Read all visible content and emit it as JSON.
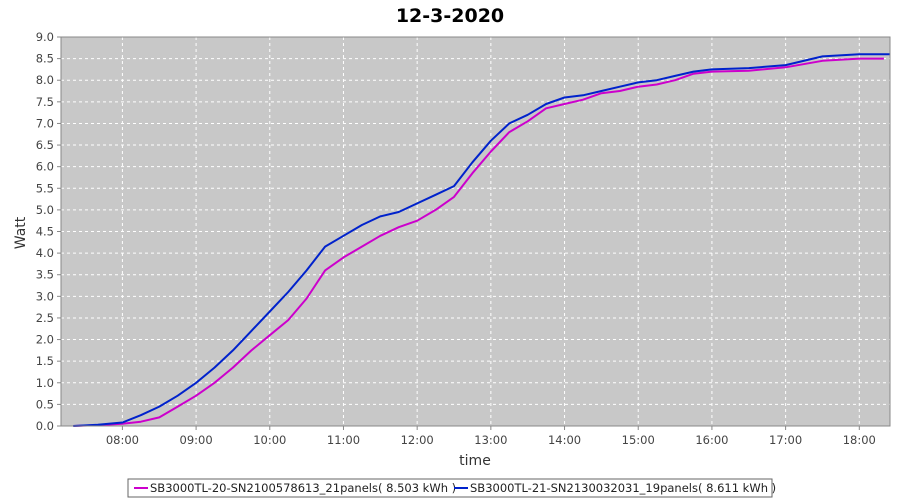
{
  "chart_data": {
    "type": "line",
    "title": "12-3-2020",
    "xlabel": "time",
    "ylabel": "Watt",
    "xlim": [
      "07:10",
      "18:25"
    ],
    "ylim": [
      0,
      9
    ],
    "x_ticks": [
      "08:00",
      "09:00",
      "10:00",
      "11:00",
      "12:00",
      "13:00",
      "14:00",
      "15:00",
      "16:00",
      "17:00",
      "18:00"
    ],
    "y_ticks": [
      "0.0",
      "0.5",
      "1.0",
      "1.5",
      "2.0",
      "2.5",
      "3.0",
      "3.5",
      "4.0",
      "4.5",
      "5.0",
      "5.5",
      "6.0",
      "6.5",
      "7.0",
      "7.5",
      "8.0",
      "8.5",
      "9.0"
    ],
    "grid": true,
    "legend_position": "bottom",
    "background_color": "#c8c8c8",
    "series": [
      {
        "name": "SB3000TL-20-SN2100578613_21panels( 8.503 kWh )",
        "color": "#cc00cc",
        "x": [
          "07:20",
          "07:40",
          "08:00",
          "08:15",
          "08:30",
          "08:45",
          "09:00",
          "09:15",
          "09:30",
          "09:45",
          "10:00",
          "10:15",
          "10:30",
          "10:45",
          "11:00",
          "11:15",
          "11:30",
          "11:45",
          "12:00",
          "12:15",
          "12:30",
          "12:45",
          "13:00",
          "13:15",
          "13:30",
          "13:45",
          "14:00",
          "14:15",
          "14:30",
          "14:45",
          "15:00",
          "15:15",
          "15:30",
          "15:45",
          "16:00",
          "16:30",
          "17:00",
          "17:30",
          "18:00",
          "18:20"
        ],
        "y": [
          0.0,
          0.02,
          0.05,
          0.1,
          0.2,
          0.45,
          0.7,
          1.0,
          1.35,
          1.75,
          2.1,
          2.45,
          2.95,
          3.6,
          3.9,
          4.15,
          4.4,
          4.6,
          4.75,
          5.0,
          5.3,
          5.85,
          6.35,
          6.8,
          7.05,
          7.35,
          7.45,
          7.55,
          7.7,
          7.75,
          7.85,
          7.9,
          8.0,
          8.15,
          8.2,
          8.22,
          8.3,
          8.45,
          8.5,
          8.5
        ]
      },
      {
        "name": "SB3000TL-21-SN2130032031_19panels( 8.611 kWh )",
        "color": "#0022cc",
        "x": [
          "07:20",
          "07:40",
          "08:00",
          "08:15",
          "08:30",
          "08:45",
          "09:00",
          "09:15",
          "09:30",
          "09:45",
          "10:00",
          "10:15",
          "10:30",
          "10:45",
          "11:00",
          "11:15",
          "11:30",
          "11:45",
          "12:00",
          "12:15",
          "12:30",
          "12:45",
          "13:00",
          "13:15",
          "13:30",
          "13:45",
          "14:00",
          "14:15",
          "14:30",
          "14:45",
          "15:00",
          "15:15",
          "15:30",
          "15:45",
          "16:00",
          "16:30",
          "17:00",
          "17:30",
          "18:00",
          "18:25"
        ],
        "y": [
          0.0,
          0.03,
          0.08,
          0.25,
          0.45,
          0.7,
          1.0,
          1.35,
          1.75,
          2.2,
          2.65,
          3.1,
          3.6,
          4.15,
          4.4,
          4.65,
          4.85,
          4.95,
          5.15,
          5.35,
          5.55,
          6.1,
          6.6,
          7.0,
          7.2,
          7.45,
          7.6,
          7.65,
          7.75,
          7.85,
          7.95,
          8.0,
          8.1,
          8.2,
          8.25,
          8.28,
          8.35,
          8.55,
          8.6,
          8.6
        ]
      }
    ]
  }
}
